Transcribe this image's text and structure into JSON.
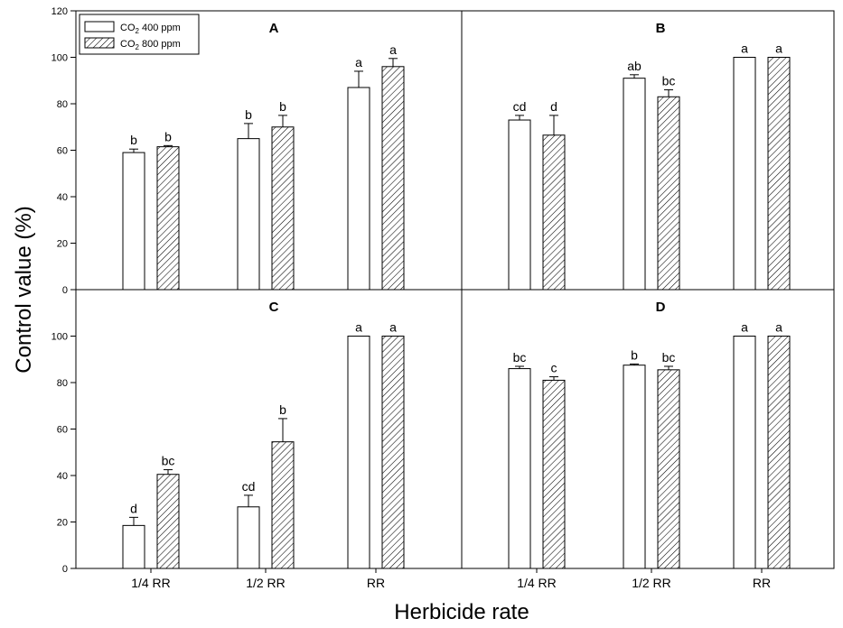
{
  "figure": {
    "ylabel": "Control value (%)",
    "xlabel": "Herbicide rate",
    "colors": {
      "axis": "#000000",
      "bar_fill": "#ffffff",
      "hatch": "#000000"
    }
  },
  "legend": {
    "placement": "top-left of panel A",
    "entries": [
      {
        "pre": "CO",
        "sub": "2",
        "post": " 400 ppm",
        "pattern": "open"
      },
      {
        "pre": "CO",
        "sub": "2",
        "post": " 800 ppm",
        "pattern": "hatched"
      }
    ]
  },
  "chart_data": {
    "type": "bar",
    "ylim": [
      0,
      120
    ],
    "yticks": [
      0,
      20,
      40,
      60,
      80,
      100,
      120
    ],
    "error_bars": "upper, one-sided",
    "grid": false,
    "categories": [
      "1/4 RR",
      "1/2 RR",
      "RR"
    ],
    "series_patterns": [
      "open",
      "hatched"
    ],
    "panels": [
      {
        "title": "A",
        "series": [
          {
            "values": [
              59,
              65,
              87
            ],
            "errors": [
              1.5,
              6.5,
              7
            ],
            "letters": [
              "b",
              "b",
              "a"
            ]
          },
          {
            "values": [
              61.5,
              70,
              96
            ],
            "errors": [
              0.5,
              5,
              3.5
            ],
            "letters": [
              "b",
              "b",
              "a"
            ]
          }
        ]
      },
      {
        "title": "B",
        "series": [
          {
            "values": [
              73,
              91,
              100
            ],
            "errors": [
              2,
              1.5,
              0
            ],
            "letters": [
              "cd",
              "ab",
              "a"
            ]
          },
          {
            "values": [
              66.5,
              83,
              100
            ],
            "errors": [
              8.5,
              3,
              0
            ],
            "letters": [
              "d",
              "bc",
              "a"
            ]
          }
        ]
      },
      {
        "title": "C",
        "series": [
          {
            "values": [
              18.5,
              26.5,
              100
            ],
            "errors": [
              3.5,
              5,
              0
            ],
            "letters": [
              "d",
              "cd",
              "a"
            ]
          },
          {
            "values": [
              40.5,
              54.5,
              100
            ],
            "errors": [
              2,
              10,
              0
            ],
            "letters": [
              "bc",
              "b",
              "a"
            ]
          }
        ]
      },
      {
        "title": "D",
        "series": [
          {
            "values": [
              86,
              87.5,
              100
            ],
            "errors": [
              1,
              0.5,
              0
            ],
            "letters": [
              "bc",
              "b",
              "a"
            ]
          },
          {
            "values": [
              81,
              85.5,
              100
            ],
            "errors": [
              1.5,
              1.5,
              0
            ],
            "letters": [
              "c",
              "bc",
              "a"
            ]
          }
        ]
      }
    ]
  }
}
